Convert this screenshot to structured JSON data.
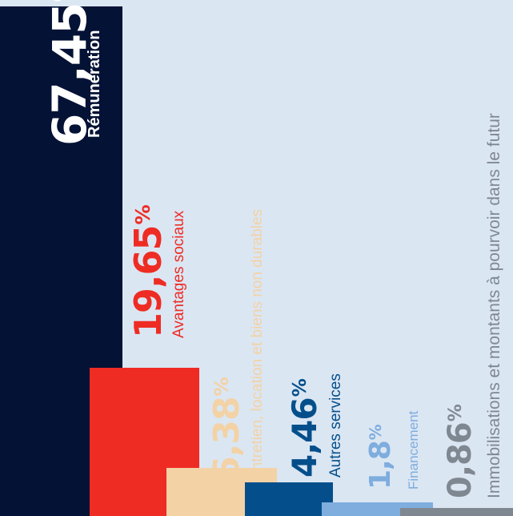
{
  "chart_data": {
    "type": "bar",
    "categories": [
      "Rémunération",
      "Avantages sociaux",
      "Entretien, location et biens non durables",
      "Autres services",
      "Financement",
      "Immobilisations et montants à pourvoir dans le futur"
    ],
    "values": [
      67.45,
      19.65,
      6.38,
      4.46,
      1.8,
      0.86
    ],
    "value_labels": [
      "67,45",
      "19,65",
      "6,38",
      "4,46",
      "1,8",
      "0,86"
    ],
    "unit": "%",
    "colors": [
      "#031235",
      "#ee2c24",
      "#f3d2a5",
      "#044f8b",
      "#7eadde",
      "#7f8791"
    ],
    "label_colors": [
      "#ffffff",
      "#ee2c24",
      "#f3d2a5",
      "#044f8b",
      "#7eadde",
      "#7f8791"
    ],
    "grid": false,
    "legend": "none"
  }
}
